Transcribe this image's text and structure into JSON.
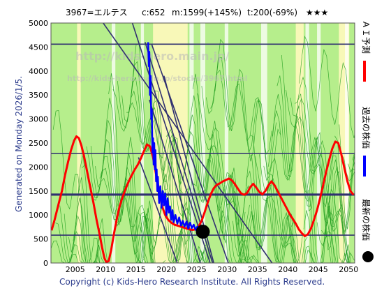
{
  "header": {
    "code_name": "3967=エルテス",
    "current": "c:652",
    "max": "m:1599(+145%)",
    "target": "t:200(-69%)",
    "stars": "★★★"
  },
  "side_text": "Generated on Monday 2026/1/5.",
  "legend": [
    {
      "label": "ＡＩ予測",
      "color": "#ff0000"
    },
    {
      "label": "過去の株価",
      "color": "#0000ff"
    },
    {
      "label": "最新の株価",
      "color": "#000000"
    }
  ],
  "footer": "Copyright (c) Kids-Hero Research Institute. All Rights Reserved.",
  "watermark": "http://kids-hero.main.jp/",
  "watermark_small": "http://kids-hero.main.jp/stocks/3967.html",
  "colors": {
    "band_green": "#b6ee8c",
    "band_yellow": "#f8f8b8",
    "thin_green": "#1a9a1a",
    "hline": "#303070",
    "diag": "#303070"
  },
  "chart_data": {
    "type": "line",
    "xlim": [
      2001,
      2051
    ],
    "ylim": [
      0,
      5000
    ],
    "x_ticks": [
      2005,
      2010,
      2015,
      2020,
      2025,
      2030,
      2035,
      2040,
      2045,
      2050
    ],
    "y_ticks": [
      0,
      500,
      1000,
      1500,
      2000,
      2500,
      3000,
      3500,
      4000,
      4500,
      5000
    ],
    "yellow_bands": [
      [
        2017.8,
        2019.6
      ],
      [
        2019.2,
        2023.5
      ],
      [
        2041.3,
        2042.6
      ],
      [
        2048.4,
        2050.1
      ],
      [
        2005.3,
        2005.9
      ]
    ],
    "white_bands": [
      [
        2011.0,
        2011.6
      ],
      [
        2015.8,
        2016.3
      ],
      [
        2023.8,
        2024.5
      ],
      [
        2025.6,
        2026.4
      ],
      [
        2029.6,
        2030.2
      ],
      [
        2035.6,
        2036.6
      ],
      [
        2042.9,
        2043.5
      ],
      [
        2044.8,
        2045.4
      ],
      [
        2049.4,
        2050.0
      ]
    ],
    "horizontal_lines": [
      {
        "y": 4560,
        "width": 1.6
      },
      {
        "y": 2280,
        "width": 1.6
      },
      {
        "y": 1425,
        "width": 3.2
      },
      {
        "y": 580,
        "width": 1.6
      }
    ],
    "diagonal_lines": [
      [
        [
          2009.6,
          5000
        ],
        [
          2037.4,
          0
        ]
      ],
      [
        [
          2014.4,
          5000
        ],
        [
          2027.2,
          0
        ]
      ],
      [
        [
          2016.5,
          4600
        ],
        [
          2027.6,
          0
        ]
      ],
      [
        [
          2017.6,
          4550
        ],
        [
          2030.2,
          0
        ]
      ],
      [
        [
          2017.2,
          3400
        ],
        [
          2025.6,
          0
        ]
      ],
      [
        [
          2015.4,
          2200
        ],
        [
          2021.8,
          0
        ]
      ],
      [
        [
          2019.6,
          3900
        ],
        [
          2027.8,
          0
        ]
      ]
    ],
    "series": [
      {
        "name": "ＡＩ予測",
        "color": "#ff0000",
        "x": [
          2001.1,
          2001.6,
          2002.2,
          2002.8,
          2003.3,
          2003.8,
          2004.3,
          2004.8,
          2005.2,
          2005.6,
          2006.0,
          2006.4,
          2006.8,
          2007.2,
          2007.6,
          2008.0,
          2008.5,
          2009.0,
          2009.4,
          2009.8,
          2010.1,
          2010.5,
          2010.9,
          2011.3,
          2011.8,
          2012.3,
          2012.8,
          2013.3,
          2013.8,
          2014.3,
          2014.8,
          2015.3,
          2015.8,
          2016.3,
          2016.8,
          2017.3,
          2017.8,
          2018.3,
          2018.8,
          2019.3,
          2019.8,
          2020.3,
          2020.8,
          2021.3,
          2021.8,
          2022.3,
          2022.8,
          2023.3,
          2023.8,
          2024.3,
          2024.8,
          2025.3,
          2025.8,
          2026.3,
          2026.8,
          2027.3,
          2027.8,
          2028.3,
          2028.8,
          2029.3,
          2029.8,
          2030.3,
          2030.8,
          2031.3,
          2031.8,
          2032.3,
          2032.8,
          2033.3,
          2033.8,
          2034.3,
          2034.8,
          2035.3,
          2035.8,
          2036.3,
          2036.8,
          2037.3,
          2037.8,
          2038.3,
          2038.8,
          2039.3,
          2039.8,
          2040.3,
          2040.8,
          2041.3,
          2041.8,
          2042.3,
          2042.8,
          2043.3,
          2043.8,
          2044.3,
          2044.8,
          2045.3,
          2045.8,
          2046.3,
          2046.8,
          2047.3,
          2047.8,
          2048.3,
          2048.8,
          2049.3,
          2049.8,
          2050.3,
          2050.8
        ],
        "y": [
          680,
          900,
          1200,
          1500,
          1820,
          2100,
          2350,
          2550,
          2640,
          2600,
          2450,
          2250,
          2000,
          1750,
          1500,
          1250,
          900,
          600,
          330,
          100,
          20,
          40,
          260,
          560,
          900,
          1180,
          1380,
          1550,
          1700,
          1830,
          1950,
          2050,
          2180,
          2330,
          2470,
          2430,
          2200,
          1850,
          1500,
          1180,
          1000,
          900,
          840,
          800,
          780,
          760,
          740,
          720,
          700,
          690,
          700,
          760,
          880,
          1060,
          1260,
          1430,
          1560,
          1630,
          1660,
          1700,
          1730,
          1760,
          1720,
          1640,
          1540,
          1450,
          1420,
          1460,
          1580,
          1650,
          1570,
          1480,
          1430,
          1500,
          1620,
          1700,
          1620,
          1500,
          1380,
          1260,
          1140,
          1020,
          920,
          820,
          700,
          620,
          560,
          600,
          720,
          900,
          1100,
          1350,
          1620,
          1900,
          2150,
          2380,
          2530,
          2500,
          2260,
          1980,
          1700,
          1500,
          1420
        ]
      },
      {
        "name": "過去の株価",
        "color": "#0000ff",
        "x": [
          2017.0,
          2017.1,
          2017.2,
          2017.3,
          2017.4,
          2017.5,
          2017.6,
          2017.7,
          2017.8,
          2017.9,
          2018.0,
          2018.1,
          2018.2,
          2018.3,
          2018.4,
          2018.5,
          2018.6,
          2018.8,
          2019.0,
          2019.2,
          2019.4,
          2019.6,
          2019.8,
          2020.0,
          2020.2,
          2020.4,
          2020.6,
          2020.8,
          2021.0,
          2021.2,
          2021.5,
          2021.8,
          2022.1,
          2022.4,
          2022.7,
          2023.0,
          2023.3,
          2023.6,
          2023.9,
          2024.2,
          2024.5,
          2024.8,
          2025.1,
          2025.4,
          2025.7,
          2025.95
        ],
        "y": [
          4600,
          4100,
          4400,
          3500,
          3900,
          3000,
          3200,
          2300,
          2600,
          2050,
          2500,
          1950,
          2350,
          1700,
          1950,
          1500,
          1800,
          1250,
          1600,
          1150,
          1500,
          1200,
          1450,
          1000,
          1350,
          1050,
          1180,
          900,
          1100,
          850,
          1000,
          820,
          950,
          780,
          880,
          760,
          860,
          720,
          840,
          730,
          800,
          690,
          760,
          700,
          660,
          652
        ]
      }
    ],
    "latest_point": {
      "x": 2026.0,
      "y": 652,
      "label": "最新の株価"
    }
  }
}
